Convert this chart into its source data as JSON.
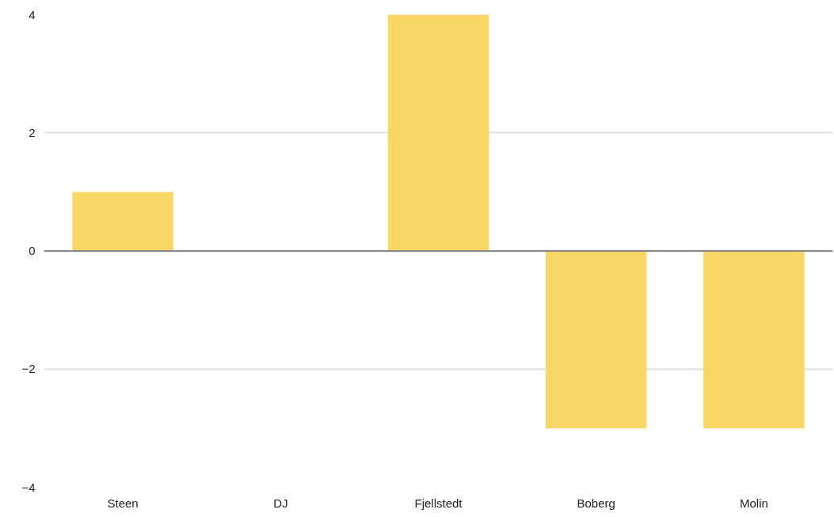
{
  "chart_data": {
    "type": "bar",
    "categories": [
      "Steen",
      "DJ",
      "Fjellstedt",
      "Boberg",
      "Molin"
    ],
    "values": [
      1,
      0,
      4,
      -3,
      -3
    ],
    "color": "#f9d767",
    "ylim": [
      -4,
      4
    ],
    "yticks": [
      -4,
      -2,
      0,
      2,
      4
    ],
    "grid": "y"
  }
}
